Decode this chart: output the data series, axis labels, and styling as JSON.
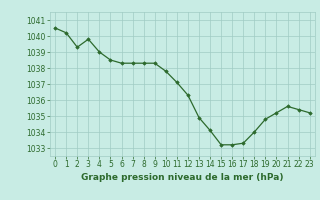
{
  "x": [
    0,
    1,
    2,
    3,
    4,
    5,
    6,
    7,
    8,
    9,
    10,
    11,
    12,
    13,
    14,
    15,
    16,
    17,
    18,
    19,
    20,
    21,
    22,
    23
  ],
  "y": [
    1040.5,
    1040.2,
    1039.3,
    1039.8,
    1039.0,
    1038.5,
    1038.3,
    1038.3,
    1038.3,
    1038.3,
    1037.8,
    1037.1,
    1036.3,
    1034.9,
    1034.1,
    1033.2,
    1033.2,
    1033.3,
    1034.0,
    1034.8,
    1035.2,
    1035.6,
    1035.4,
    1035.2
  ],
  "line_color": "#2d6a2d",
  "marker": "D",
  "markersize": 1.8,
  "linewidth": 0.9,
  "background_color": "#c8ece4",
  "grid_color": "#a0ccc4",
  "xlabel": "Graphe pression niveau de la mer (hPa)",
  "xlabel_fontsize": 6.5,
  "xlabel_color": "#2d6a2d",
  "tick_color": "#2d6a2d",
  "tick_fontsize": 5.5,
  "ylim": [
    1032.5,
    1041.5
  ],
  "yticks": [
    1033,
    1034,
    1035,
    1036,
    1037,
    1038,
    1039,
    1040,
    1041
  ],
  "xlim": [
    -0.5,
    23.5
  ],
  "xticks": [
    0,
    1,
    2,
    3,
    4,
    5,
    6,
    7,
    8,
    9,
    10,
    11,
    12,
    13,
    14,
    15,
    16,
    17,
    18,
    19,
    20,
    21,
    22,
    23
  ]
}
